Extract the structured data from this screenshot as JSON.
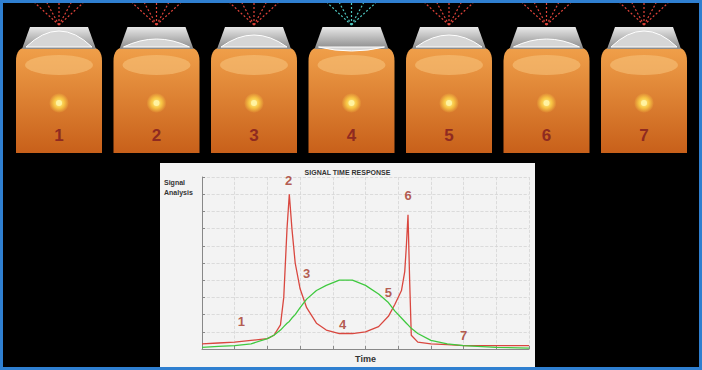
{
  "panels": [
    "1",
    "2",
    "3",
    "4",
    "5",
    "6",
    "7"
  ],
  "chart_data": {
    "type": "line",
    "title": "SIGNAL TIME RESPONSE",
    "ylabel": "Signal Analysis",
    "xlabel": "Time",
    "x": [
      0,
      5,
      10,
      15,
      20,
      22,
      24,
      25,
      26,
      26.7,
      27.5,
      28.5,
      30,
      32,
      35,
      38,
      42,
      46,
      50,
      54,
      57,
      59,
      61,
      62,
      62.5,
      63,
      63.5,
      64,
      66,
      70,
      75,
      80,
      90,
      100
    ],
    "series": [
      {
        "color": "#d9473f",
        "values": [
          3,
          3.5,
          4,
          5,
          6,
          8,
          14,
          30,
          70,
          90,
          70,
          50,
          35,
          24,
          15,
          11,
          9,
          9,
          10,
          13,
          19,
          26,
          34,
          45,
          60,
          78,
          40,
          8,
          4,
          3,
          2.5,
          2,
          2,
          2
        ]
      },
      {
        "color": "#3fc93f",
        "values": [
          1,
          1.5,
          2,
          3,
          6,
          8,
          11,
          13,
          15,
          16,
          18,
          20,
          24,
          29,
          34,
          37,
          40,
          40,
          37,
          32,
          27,
          22,
          18,
          16,
          15,
          14,
          13,
          12,
          9,
          5,
          3,
          2,
          1,
          0.5
        ]
      }
    ],
    "xlim": [
      0,
      100
    ],
    "ylim": [
      0,
      100
    ],
    "xticks": [
      0,
      10,
      20,
      30,
      40,
      50,
      60,
      70,
      80,
      90,
      100
    ],
    "yticks": [
      0,
      10,
      20,
      30,
      40,
      50,
      60,
      70,
      80,
      90,
      100
    ],
    "grid": true,
    "tick_labels": false,
    "annotations": [
      {
        "text": "1",
        "x": 12,
        "y": 16
      },
      {
        "text": "2",
        "x": 26.5,
        "y": 98
      },
      {
        "text": "3",
        "x": 32,
        "y": 44
      },
      {
        "text": "4",
        "x": 43,
        "y": 14
      },
      {
        "text": "5",
        "x": 57,
        "y": 33
      },
      {
        "text": "6",
        "x": 63,
        "y": 89
      },
      {
        "text": "7",
        "x": 80,
        "y": 8
      }
    ]
  }
}
